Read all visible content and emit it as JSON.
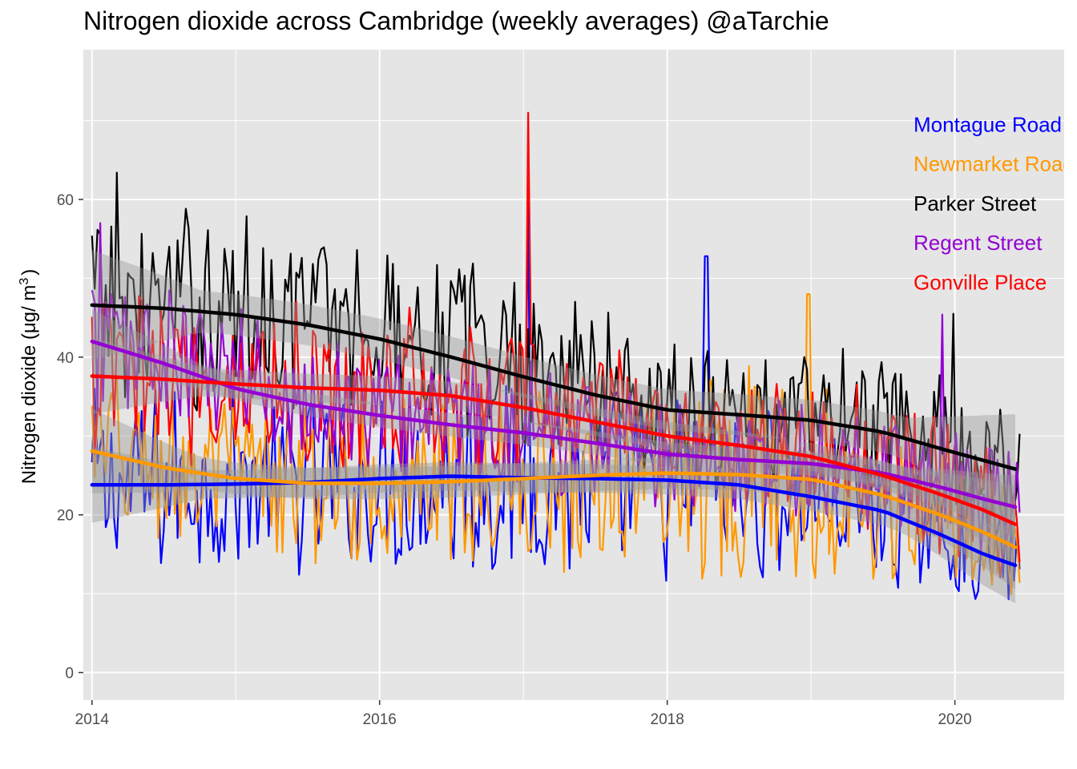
{
  "chart_data": {
    "type": "line",
    "title": "Nitrogen dioxide across Cambridge (weekly averages)  @aTarchie",
    "xlabel": "",
    "ylabel": "Nitrogen dioxide (μg/m³)",
    "ylabel_main": "Nitrogen dioxide (",
    "ylabel_mu": "μ",
    "ylabel_unit": "g/ m",
    "ylabel_sup": "3",
    "ylabel_close": ")",
    "xlim": [
      2013.94,
      2020.76
    ],
    "ylim": [
      -3.5,
      79
    ],
    "grid": true,
    "x_ticks": [
      2014,
      2016,
      2018,
      2020
    ],
    "x_tick_labels": [
      "2014",
      "2016",
      "2018",
      "2020"
    ],
    "y_ticks": [
      0,
      20,
      40,
      60
    ],
    "y_tick_labels": [
      "0",
      "20",
      "40",
      "60"
    ],
    "series": [
      {
        "name": "Montague Road",
        "color": "#0000ff",
        "stats": {
          "mean": [
            24,
            24,
            24,
            24,
            24,
            24,
            25,
            25,
            24,
            24,
            24,
            23,
            22,
            20,
            17,
            14
          ],
          "amp": [
            8,
            8,
            8,
            7,
            8,
            8,
            9,
            9,
            8,
            8,
            8,
            7,
            6,
            6,
            5,
            4
          ]
        },
        "smooth": [
          [
            2014.0,
            23.8
          ],
          [
            2014.5,
            23.8
          ],
          [
            2015.0,
            23.9
          ],
          [
            2015.5,
            24.1
          ],
          [
            2016.0,
            24.6
          ],
          [
            2016.5,
            24.9
          ],
          [
            2017.0,
            24.7
          ],
          [
            2017.5,
            24.6
          ],
          [
            2018.0,
            24.4
          ],
          [
            2018.5,
            23.8
          ],
          [
            2019.0,
            22.3
          ],
          [
            2019.5,
            20.5
          ],
          [
            2019.9,
            17.5
          ],
          [
            2020.2,
            15.0
          ],
          [
            2020.42,
            13.6
          ]
        ],
        "band": 1.8
      },
      {
        "name": "Newmarket Road",
        "color": "#ff9900",
        "stats": {
          "mean": [
            28,
            26,
            25,
            24,
            24,
            24,
            24,
            25,
            25,
            25,
            26,
            26,
            24,
            22,
            19,
            16
          ],
          "amp": [
            8,
            7,
            7,
            7,
            7,
            7,
            7,
            8,
            8,
            8,
            9,
            9,
            8,
            7,
            6,
            5
          ]
        },
        "smooth": [
          [
            2014.0,
            28.1
          ],
          [
            2014.5,
            26.0
          ],
          [
            2015.0,
            24.6
          ],
          [
            2015.5,
            24.0
          ],
          [
            2016.0,
            24.0
          ],
          [
            2016.5,
            24.2
          ],
          [
            2017.0,
            24.6
          ],
          [
            2017.5,
            25.0
          ],
          [
            2018.0,
            25.3
          ],
          [
            2018.5,
            25.1
          ],
          [
            2019.0,
            24.5
          ],
          [
            2019.5,
            22.5
          ],
          [
            2019.9,
            20.0
          ],
          [
            2020.2,
            17.8
          ],
          [
            2020.42,
            15.9
          ]
        ],
        "band": 2.0
      },
      {
        "name": "Parker Street",
        "color": "#000000",
        "stats": {
          "mean": [
            47,
            46,
            46,
            46,
            45,
            44,
            42,
            40,
            37,
            35,
            33,
            32,
            32,
            30,
            28,
            26
          ],
          "amp": [
            9,
            9,
            8,
            8,
            8,
            8,
            8,
            7,
            7,
            7,
            6,
            6,
            6,
            6,
            6,
            5
          ]
        },
        "smooth": [
          [
            2014.0,
            46.6
          ],
          [
            2014.5,
            46.2
          ],
          [
            2015.0,
            45.4
          ],
          [
            2015.5,
            44.1
          ],
          [
            2016.0,
            42.3
          ],
          [
            2016.5,
            40.0
          ],
          [
            2017.0,
            37.5
          ],
          [
            2017.5,
            35.2
          ],
          [
            2018.0,
            33.3
          ],
          [
            2018.5,
            32.7
          ],
          [
            2019.0,
            32.0
          ],
          [
            2019.5,
            30.5
          ],
          [
            2019.9,
            28.4
          ],
          [
            2020.2,
            26.9
          ],
          [
            2020.42,
            25.8
          ]
        ],
        "band": 2.6
      },
      {
        "name": "Regent Street",
        "color": "#9400d3",
        "stats": {
          "mean": [
            42,
            40,
            38,
            36,
            34,
            33,
            32,
            31,
            30,
            29,
            28,
            27,
            26,
            25,
            23,
            21
          ],
          "amp": [
            7,
            7,
            6,
            6,
            6,
            6,
            6,
            6,
            5,
            5,
            5,
            5,
            5,
            5,
            5,
            5
          ]
        },
        "smooth": [
          [
            2014.0,
            42.0
          ],
          [
            2014.5,
            39.2
          ],
          [
            2015.0,
            36.0
          ],
          [
            2015.5,
            34.0
          ],
          [
            2016.0,
            32.6
          ],
          [
            2016.5,
            31.4
          ],
          [
            2017.0,
            30.4
          ],
          [
            2017.5,
            29.1
          ],
          [
            2018.0,
            27.7
          ],
          [
            2018.5,
            27.0
          ],
          [
            2019.0,
            26.5
          ],
          [
            2019.5,
            25.3
          ],
          [
            2019.9,
            23.5
          ],
          [
            2020.2,
            22.0
          ],
          [
            2020.42,
            21.0
          ]
        ],
        "band": 1.5
      },
      {
        "name": "Gonville Place",
        "color": "#ff0000",
        "stats": {
          "mean": [
            38,
            37,
            37,
            37,
            36,
            36,
            35,
            34,
            33,
            32,
            30,
            29,
            28,
            26,
            23,
            19
          ],
          "amp": [
            8,
            7,
            7,
            7,
            7,
            7,
            7,
            7,
            7,
            6,
            6,
            6,
            6,
            6,
            6,
            5
          ]
        },
        "smooth": [
          [
            2014.0,
            37.6
          ],
          [
            2014.5,
            37.2
          ],
          [
            2015.0,
            36.6
          ],
          [
            2015.5,
            36.1
          ],
          [
            2016.0,
            35.8
          ],
          [
            2016.5,
            35.1
          ],
          [
            2017.0,
            33.6
          ],
          [
            2017.5,
            31.8
          ],
          [
            2018.0,
            30.0
          ],
          [
            2018.5,
            28.8
          ],
          [
            2019.0,
            27.4
          ],
          [
            2019.5,
            25.0
          ],
          [
            2019.9,
            22.6
          ],
          [
            2020.2,
            20.6
          ],
          [
            2020.42,
            18.8
          ]
        ],
        "band": 1.8
      }
    ],
    "spikes": [
      {
        "series": "Parker Street",
        "x": 2014.17,
        "y": 63.4
      },
      {
        "series": "Gonville Place",
        "x": 2017.04,
        "y": 71.0
      },
      {
        "series": "Montague Road",
        "x": 2017.04,
        "y": 59.8
      },
      {
        "series": "Regent Street",
        "x": 2014.06,
        "y": 57.0
      },
      {
        "series": "Montague Road",
        "x": 2018.27,
        "y": 52.8
      },
      {
        "series": "Newmarket Road",
        "x": 2018.98,
        "y": 48.0
      },
      {
        "series": "Regent Street",
        "x": 2019.92,
        "y": 45.4
      },
      {
        "series": "Parker Street",
        "x": 2019.99,
        "y": 45.5
      }
    ],
    "legend": {
      "placement": "top-right",
      "entries": [
        "Montague Road",
        "Newmarket Road",
        "Parker Street",
        "Regent Street",
        "Gonville Place"
      ],
      "label_y": [
        69.5,
        64.5,
        59.5,
        54.5,
        49.5
      ]
    }
  }
}
